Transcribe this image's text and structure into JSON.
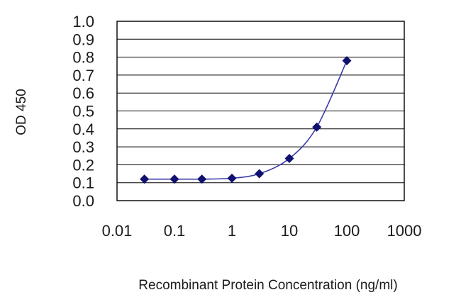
{
  "chart_data": {
    "type": "line",
    "title": "",
    "xlabel": "Recombinant Protein Concentration (ng/ml)",
    "ylabel": "OD 450",
    "x_scale": "log",
    "xlim": [
      0.01,
      1000
    ],
    "ylim": [
      0.0,
      1.0
    ],
    "x_ticks": [
      "0.01",
      "0.1",
      "1",
      "10",
      "100",
      "1000"
    ],
    "y_ticks": [
      "0.0",
      "0.1",
      "0.2",
      "0.3",
      "0.4",
      "0.5",
      "0.6",
      "0.7",
      "0.8",
      "0.9",
      "1.0"
    ],
    "grid": "horizontal",
    "legend": "none",
    "series": [
      {
        "x": [
          0.03,
          0.1,
          0.3,
          1,
          3,
          10,
          30,
          100
        ],
        "y": [
          0.12,
          0.12,
          0.12,
          0.125,
          0.15,
          0.235,
          0.41,
          0.78
        ]
      }
    ],
    "colors": {
      "line": "#3b3ba8",
      "marker": "#101070",
      "grid": "#000000",
      "frame": "#000000"
    }
  }
}
